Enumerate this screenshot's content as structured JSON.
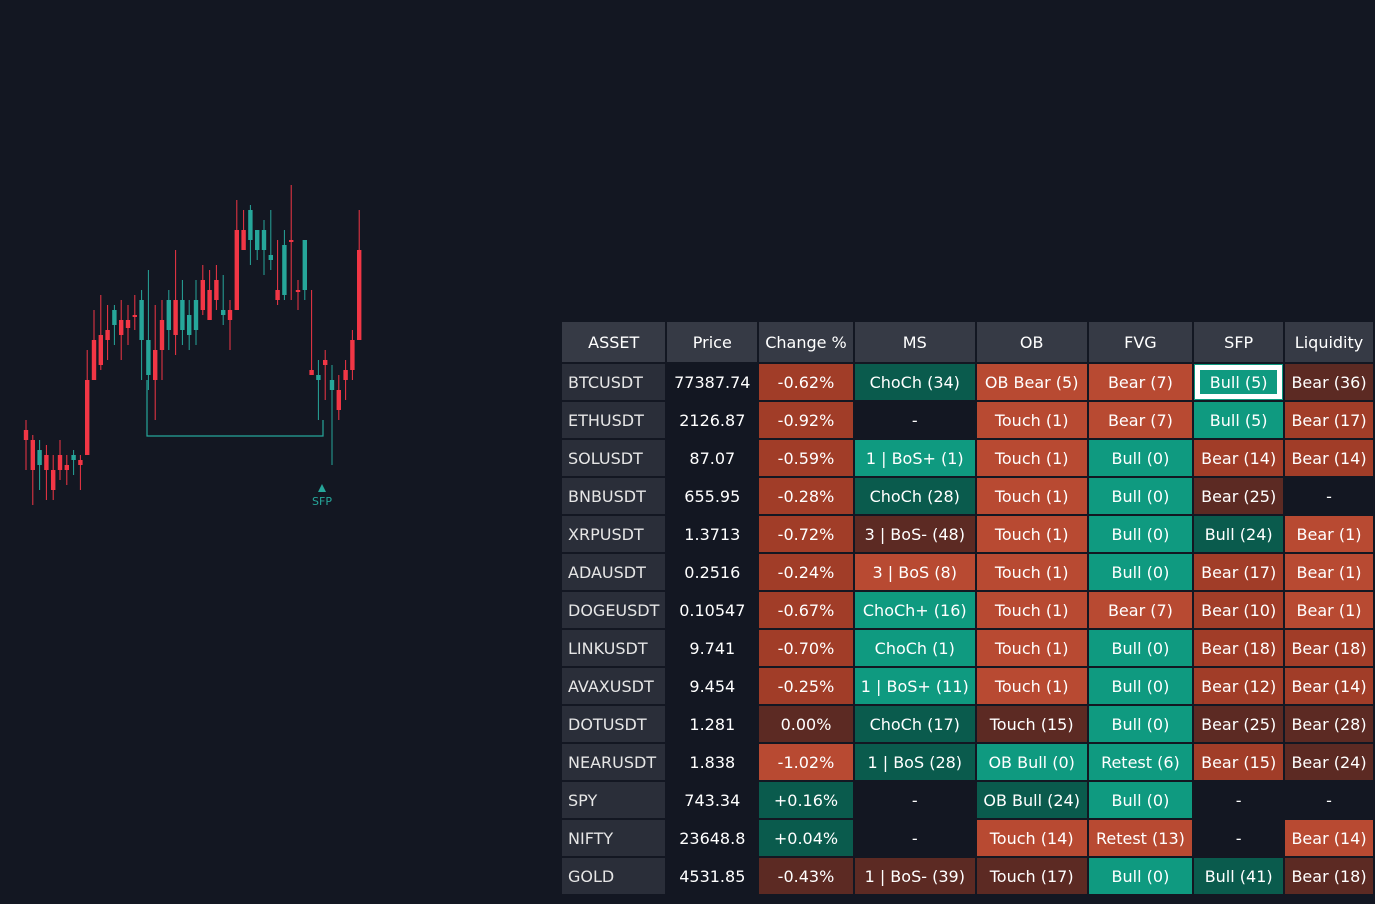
{
  "chart": {
    "annotation": "SFP",
    "candles": [
      [
        430,
        420,
        470,
        440
      ],
      [
        440,
        435,
        505,
        470
      ],
      [
        465,
        440,
        490,
        450
      ],
      [
        455,
        445,
        500,
        470
      ],
      [
        470,
        455,
        500,
        490
      ],
      [
        455,
        440,
        480,
        470
      ],
      [
        465,
        455,
        485,
        470
      ],
      [
        460,
        450,
        475,
        455
      ],
      [
        460,
        455,
        490,
        465
      ],
      [
        380,
        350,
        440,
        455
      ],
      [
        340,
        310,
        380,
        380
      ],
      [
        335,
        295,
        370,
        365
      ],
      [
        330,
        305,
        360,
        340
      ],
      [
        325,
        305,
        345,
        310
      ],
      [
        320,
        300,
        360,
        335
      ],
      [
        320,
        305,
        345,
        328
      ],
      [
        315,
        295,
        330,
        315
      ],
      [
        340,
        290,
        380,
        300
      ],
      [
        375,
        270,
        390,
        340
      ],
      [
        350,
        305,
        420,
        380
      ],
      [
        320,
        300,
        380,
        350
      ],
      [
        330,
        290,
        350,
        300
      ],
      [
        300,
        250,
        355,
        335
      ],
      [
        330,
        280,
        345,
        300
      ],
      [
        335,
        300,
        350,
        315
      ],
      [
        330,
        280,
        345,
        300
      ],
      [
        280,
        265,
        315,
        310
      ],
      [
        290,
        270,
        320,
        320
      ],
      [
        280,
        265,
        310,
        300
      ],
      [
        315,
        275,
        325,
        310
      ],
      [
        310,
        300,
        350,
        320
      ],
      [
        230,
        200,
        260,
        310
      ],
      [
        230,
        210,
        250,
        250
      ],
      [
        240,
        205,
        265,
        210
      ],
      [
        250,
        230,
        260,
        230
      ],
      [
        250,
        220,
        275,
        230
      ],
      [
        260,
        210,
        270,
        255
      ],
      [
        290,
        240,
        305,
        300
      ],
      [
        295,
        230,
        300,
        245
      ],
      [
        240,
        185,
        300,
        240
      ],
      [
        290,
        280,
        310,
        290
      ],
      [
        290,
        240,
        300,
        240
      ],
      [
        370,
        290,
        375,
        375
      ],
      [
        380,
        360,
        420,
        375
      ],
      [
        360,
        350,
        400,
        365
      ],
      [
        390,
        365,
        465,
        380
      ],
      [
        390,
        375,
        420,
        410
      ],
      [
        370,
        360,
        400,
        380
      ],
      [
        340,
        330,
        380,
        370
      ],
      [
        250,
        210,
        310,
        340
      ]
    ],
    "sfp_level": 436
  },
  "columns": [
    "ASSET",
    "Price",
    "Change %",
    "MS",
    "OB",
    "FVG",
    "SFP",
    "Liquidity"
  ],
  "rows": [
    {
      "asset": "BTCUSDT",
      "price": "77387.74",
      "change": {
        "t": "-0.62%",
        "c": "redd"
      },
      "ms": {
        "t": "ChoCh (34)",
        "c": "dteal"
      },
      "ob": {
        "t": "OB Bear (5)",
        "c": "red"
      },
      "fvg": {
        "t": "Bear (7)",
        "c": "red"
      },
      "sfp": {
        "t": "Bull (5)",
        "c": "teal"
      },
      "liq": {
        "t": "Bear (36)",
        "c": "maroon"
      }
    },
    {
      "asset": "ETHUSDT",
      "price": "2126.87",
      "change": {
        "t": "-0.92%",
        "c": "redd"
      },
      "ms": {
        "t": "-",
        "c": "dark"
      },
      "ob": {
        "t": "Touch (1)",
        "c": "red"
      },
      "fvg": {
        "t": "Bear (7)",
        "c": "red"
      },
      "sfp": {
        "t": "Bull (5)",
        "c": "teal"
      },
      "liq": {
        "t": "Bear (17)",
        "c": "redd"
      }
    },
    {
      "asset": "SOLUSDT",
      "price": "87.07",
      "change": {
        "t": "-0.59%",
        "c": "redd"
      },
      "ms": {
        "t": "1 | BoS+ (1)",
        "c": "teal"
      },
      "ob": {
        "t": "Touch (1)",
        "c": "red"
      },
      "fvg": {
        "t": "Bull (0)",
        "c": "teal"
      },
      "sfp": {
        "t": "Bear (14)",
        "c": "redd"
      },
      "liq": {
        "t": "Bear (14)",
        "c": "redd"
      }
    },
    {
      "asset": "BNBUSDT",
      "price": "655.95",
      "change": {
        "t": "-0.28%",
        "c": "redd"
      },
      "ms": {
        "t": "ChoCh (28)",
        "c": "dteal"
      },
      "ob": {
        "t": "Touch (1)",
        "c": "red"
      },
      "fvg": {
        "t": "Bull (0)",
        "c": "teal"
      },
      "sfp": {
        "t": "Bear (25)",
        "c": "maroon"
      },
      "liq": {
        "t": "-",
        "c": "dark"
      }
    },
    {
      "asset": "XRPUSDT",
      "price": "1.3713",
      "change": {
        "t": "-0.72%",
        "c": "redd"
      },
      "ms": {
        "t": "3 | BoS- (48)",
        "c": "maroon"
      },
      "ob": {
        "t": "Touch (1)",
        "c": "red"
      },
      "fvg": {
        "t": "Bull (0)",
        "c": "teal"
      },
      "sfp": {
        "t": "Bull (24)",
        "c": "dteal"
      },
      "liq": {
        "t": "Bear (1)",
        "c": "red"
      }
    },
    {
      "asset": "ADAUSDT",
      "price": "0.2516",
      "change": {
        "t": "-0.24%",
        "c": "redd"
      },
      "ms": {
        "t": "3 | BoS (8)",
        "c": "red"
      },
      "ob": {
        "t": "Touch (1)",
        "c": "red"
      },
      "fvg": {
        "t": "Bull (0)",
        "c": "teal"
      },
      "sfp": {
        "t": "Bear (17)",
        "c": "redd"
      },
      "liq": {
        "t": "Bear (1)",
        "c": "red"
      }
    },
    {
      "asset": "DOGEUSDT",
      "price": "0.10547",
      "change": {
        "t": "-0.67%",
        "c": "redd"
      },
      "ms": {
        "t": "ChoCh+ (16)",
        "c": "teal"
      },
      "ob": {
        "t": "Touch (1)",
        "c": "red"
      },
      "fvg": {
        "t": "Bear (7)",
        "c": "red"
      },
      "sfp": {
        "t": "Bear (10)",
        "c": "redd"
      },
      "liq": {
        "t": "Bear (1)",
        "c": "red"
      }
    },
    {
      "asset": "LINKUSDT",
      "price": "9.741",
      "change": {
        "t": "-0.70%",
        "c": "redd"
      },
      "ms": {
        "t": "ChoCh (1)",
        "c": "teal"
      },
      "ob": {
        "t": "Touch (1)",
        "c": "red"
      },
      "fvg": {
        "t": "Bull (0)",
        "c": "teal"
      },
      "sfp": {
        "t": "Bear (18)",
        "c": "redd"
      },
      "liq": {
        "t": "Bear (18)",
        "c": "redd"
      }
    },
    {
      "asset": "AVAXUSDT",
      "price": "9.454",
      "change": {
        "t": "-0.25%",
        "c": "redd"
      },
      "ms": {
        "t": "1 | BoS+ (11)",
        "c": "teal"
      },
      "ob": {
        "t": "Touch (1)",
        "c": "red"
      },
      "fvg": {
        "t": "Bull (0)",
        "c": "teal"
      },
      "sfp": {
        "t": "Bear (12)",
        "c": "redd"
      },
      "liq": {
        "t": "Bear (14)",
        "c": "redd"
      }
    },
    {
      "asset": "DOTUSDT",
      "price": "1.281",
      "change": {
        "t": "0.00%",
        "c": "maroon"
      },
      "ms": {
        "t": "ChoCh (17)",
        "c": "dteal"
      },
      "ob": {
        "t": "Touch (15)",
        "c": "maroon"
      },
      "fvg": {
        "t": "Bull (0)",
        "c": "teal"
      },
      "sfp": {
        "t": "Bear (25)",
        "c": "maroon"
      },
      "liq": {
        "t": "Bear (28)",
        "c": "maroon"
      }
    },
    {
      "asset": "NEARUSDT",
      "price": "1.838",
      "change": {
        "t": "-1.02%",
        "c": "red"
      },
      "ms": {
        "t": "1 | BoS (28)",
        "c": "dteal"
      },
      "ob": {
        "t": "OB Bull (0)",
        "c": "teal"
      },
      "fvg": {
        "t": "Retest (6)",
        "c": "teal"
      },
      "sfp": {
        "t": "Bear (15)",
        "c": "redd"
      },
      "liq": {
        "t": "Bear (24)",
        "c": "maroon"
      }
    },
    {
      "asset": "SPY",
      "price": "743.34",
      "change": {
        "t": "+0.16%",
        "c": "dteal"
      },
      "ms": {
        "t": "-",
        "c": "dark"
      },
      "ob": {
        "t": "OB Bull (24)",
        "c": "dteal"
      },
      "fvg": {
        "t": "Bull (0)",
        "c": "teal"
      },
      "sfp": {
        "t": "-",
        "c": "dark"
      },
      "liq": {
        "t": "-",
        "c": "dark"
      }
    },
    {
      "asset": "NIFTY",
      "price": "23648.8",
      "change": {
        "t": "+0.04%",
        "c": "dteal"
      },
      "ms": {
        "t": "-",
        "c": "dark"
      },
      "ob": {
        "t": "Touch (14)",
        "c": "red"
      },
      "fvg": {
        "t": "Retest (13)",
        "c": "red"
      },
      "sfp": {
        "t": "-",
        "c": "dark"
      },
      "liq": {
        "t": "Bear (14)",
        "c": "red"
      }
    },
    {
      "asset": "GOLD",
      "price": "4531.85",
      "change": {
        "t": "-0.43%",
        "c": "maroon"
      },
      "ms": {
        "t": "1 | BoS- (39)",
        "c": "maroon"
      },
      "ob": {
        "t": "Touch (17)",
        "c": "maroon"
      },
      "fvg": {
        "t": "Bull (0)",
        "c": "teal"
      },
      "sfp": {
        "t": "Bull (41)",
        "c": "dteal"
      },
      "liq": {
        "t": "Bear (18)",
        "c": "maroon"
      }
    }
  ],
  "colors": {
    "bull": "#26a69a",
    "bear": "#f23645"
  }
}
